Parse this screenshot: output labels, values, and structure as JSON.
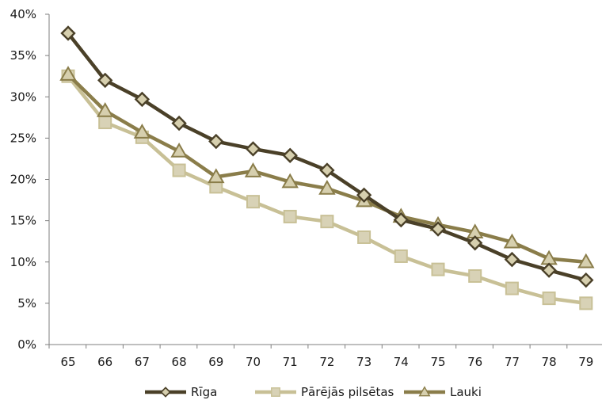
{
  "chart_data": {
    "type": "line",
    "title": "",
    "xlabel": "",
    "ylabel": "",
    "categories": [
      "65",
      "66",
      "67",
      "68",
      "69",
      "70",
      "71",
      "72",
      "73",
      "74",
      "75",
      "76",
      "77",
      "78",
      "79"
    ],
    "ylim": [
      0,
      40
    ],
    "yticks": [
      0,
      5,
      10,
      15,
      20,
      25,
      30,
      35,
      40
    ],
    "ytick_labels": [
      "0%",
      "5%",
      "10%",
      "15%",
      "20%",
      "25%",
      "30%",
      "35%",
      "40%"
    ],
    "grid": false,
    "legend_position": "bottom",
    "series": [
      {
        "name": "Rīga",
        "marker": "diamond",
        "color": "#4a4028",
        "marker_fill": "#d6cfae",
        "values": [
          37.7,
          32.0,
          29.7,
          26.8,
          24.6,
          23.7,
          22.9,
          21.1,
          18.1,
          15.1,
          14.0,
          12.3,
          10.3,
          9.0,
          7.8
        ]
      },
      {
        "name": "Pārējās pilsētas",
        "marker": "square",
        "color": "#c8c096",
        "marker_fill": "#d8d2b6",
        "values": [
          32.5,
          26.9,
          25.1,
          21.1,
          19.1,
          17.3,
          15.5,
          14.9,
          13.0,
          10.7,
          9.1,
          8.3,
          6.8,
          5.6,
          5.0
        ]
      },
      {
        "name": "Lauki",
        "marker": "triangle",
        "color": "#8a7d4a",
        "marker_fill": "#d6cfae",
        "values": [
          32.7,
          28.3,
          25.7,
          23.4,
          20.3,
          21.0,
          19.7,
          18.9,
          17.4,
          15.5,
          14.5,
          13.6,
          12.4,
          10.4,
          10.0
        ]
      }
    ]
  }
}
